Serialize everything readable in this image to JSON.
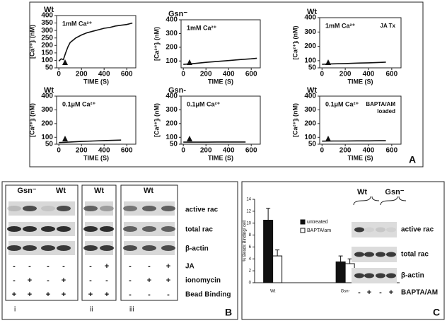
{
  "chart_data": [
    {
      "type": "line",
      "title": "Wt",
      "annotation": "1mM Ca²⁺",
      "y_label": "[Ca²⁺]ᵢ (nM)",
      "x_label": "TIME (S)",
      "x": [
        0,
        20,
        40,
        60,
        80,
        100,
        150,
        200,
        250,
        300,
        350,
        400,
        450,
        500,
        550,
        600,
        650
      ],
      "values": [
        95,
        110,
        105,
        150,
        190,
        220,
        250,
        270,
        285,
        295,
        305,
        315,
        320,
        330,
        335,
        340,
        350
      ],
      "color": "#111",
      "xlim": [
        -20,
        680
      ],
      "ylim": [
        50,
        400
      ],
      "xticks": [
        0,
        200,
        400,
        600
      ],
      "yticks": [
        50,
        100,
        150,
        200,
        250,
        300,
        350,
        400
      ]
    },
    {
      "type": "line",
      "title": "Gsn⁻",
      "annotation": "1mM Ca²⁺",
      "y_label": "[Ca²⁺]ᵢ (nM)",
      "x_label": "TIME (S)",
      "x": [
        0,
        100,
        200,
        300,
        400,
        500,
        600,
        650
      ],
      "values": [
        75,
        82,
        90,
        97,
        103,
        110,
        116,
        120
      ],
      "color": "#111",
      "xlim": [
        -20,
        680
      ],
      "ylim": [
        50,
        400
      ],
      "xticks": [
        0,
        200,
        400,
        600
      ],
      "yticks": [
        100,
        200,
        300,
        400
      ]
    },
    {
      "type": "line",
      "title": "Wt",
      "annotation": "1mM Ca²⁺",
      "note": [
        "JA Tx"
      ],
      "y_label": "[Ca²⁺]ᵢ (nM)",
      "x_label": "TIME (S)",
      "x": [
        0,
        100,
        200,
        300,
        400,
        500,
        550
      ],
      "values": [
        75,
        78,
        80,
        83,
        85,
        88,
        90
      ],
      "color": "#111",
      "xlim": [
        -20,
        680
      ],
      "ylim": [
        50,
        400
      ],
      "xticks": [
        0,
        200,
        400,
        600
      ],
      "yticks": [
        50,
        100,
        200,
        300,
        400
      ]
    },
    {
      "type": "line",
      "title": "Wt",
      "annotation": "0.1μM Ca²⁺",
      "y_label": "[Ca²⁺]ᵢ (nM)",
      "x_label": "TIME (S)",
      "x": [
        0,
        100,
        200,
        300,
        400,
        500,
        550
      ],
      "values": [
        62,
        66,
        70,
        73,
        76,
        79,
        80
      ],
      "color": "#111",
      "xlim": [
        -20,
        680
      ],
      "ylim": [
        50,
        400
      ],
      "xticks": [
        0,
        200,
        400,
        600
      ],
      "yticks": [
        50,
        100,
        200,
        300,
        400
      ]
    },
    {
      "type": "line",
      "title": "Gsn-",
      "annotation": "0.1μM Ca²⁺",
      "y_label": "[Ca²⁺]ᵢ (nM)",
      "x_label": "TIME (S)",
      "x": [
        0,
        100,
        200,
        300,
        400,
        500,
        550
      ],
      "values": [
        65,
        65,
        65,
        66,
        66,
        66,
        66
      ],
      "color": "#111",
      "xlim": [
        -20,
        680
      ],
      "ylim": [
        50,
        400
      ],
      "xticks": [
        0,
        200,
        400,
        600
      ],
      "yticks": [
        50,
        100,
        200,
        300,
        400
      ]
    },
    {
      "type": "line",
      "title": "Wt",
      "annotation": "0.1μM Ca²⁺",
      "note": [
        "BAPTA/AM",
        "loaded"
      ],
      "y_label": "[Ca²⁺]ᵢ (nM)",
      "x_label": "TIME (S)",
      "x": [
        0,
        100,
        200,
        300,
        400,
        500,
        550
      ],
      "values": [
        72,
        73,
        73,
        74,
        74,
        75,
        75
      ],
      "color": "#111",
      "xlim": [
        -20,
        680
      ],
      "ylim": [
        50,
        400
      ],
      "xticks": [
        0,
        200,
        400,
        600
      ],
      "yticks": [
        50,
        100,
        200,
        300,
        400
      ]
    },
    {
      "type": "bar",
      "y_label": "% Beads Binding/ cell",
      "categories": [
        "Wt",
        "Gsn-"
      ],
      "series": [
        {
          "name": "untreated",
          "color": "#111",
          "values": [
            10.5,
            3.5
          ],
          "errors": [
            2,
            1
          ]
        },
        {
          "name": "BAPTA/am",
          "color": "#fff",
          "values": [
            4.5,
            3.2
          ],
          "errors": [
            1,
            0.8
          ]
        }
      ],
      "ylim": [
        0,
        14
      ],
      "yticks": [
        0,
        2,
        4,
        6,
        8,
        10,
        12,
        14
      ]
    }
  ],
  "panel_labels": [
    "A",
    "B",
    "C"
  ],
  "panel_b": {
    "headers": [
      "Gsn⁻",
      "Wt",
      "Wt",
      "Wt"
    ],
    "row_labels": [
      "active rac",
      "total rac",
      "β-actin",
      "JA",
      "ionomycin",
      "Bead Binding"
    ],
    "signs": [
      [
        "-",
        "-",
        "-",
        "-",
        "-",
        "+",
        "-",
        "-",
        "+"
      ],
      [
        "-",
        "+",
        "-",
        "+",
        "-",
        "-",
        "-",
        "+",
        "+"
      ],
      [
        "+",
        "+",
        "+",
        "+",
        "+",
        "+",
        "-",
        "-",
        "-"
      ]
    ],
    "sublabels": [
      "i",
      "ii",
      "iii"
    ]
  },
  "panel_c_blot": {
    "headers": [
      "Wt",
      "Gsn⁻"
    ],
    "row_labels": [
      "active rac",
      "total rac",
      "β-actin"
    ],
    "treatment_label": "BAPTA/AM",
    "signs": [
      "-",
      "+",
      "-",
      "+"
    ]
  }
}
